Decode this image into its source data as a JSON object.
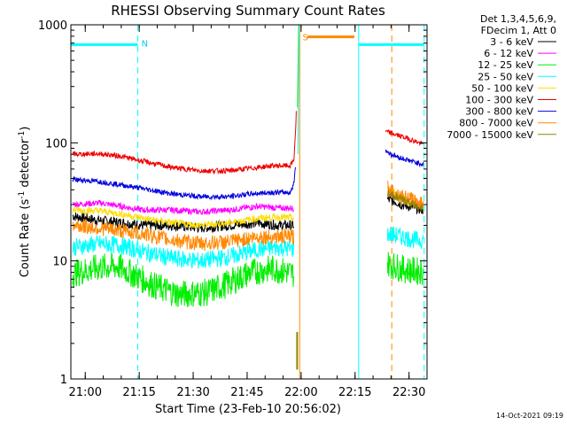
{
  "chart_data": {
    "type": "line",
    "title": "RHESSI Observing Summary Count Rates",
    "xlabel": "Start Time (23-Feb-10 20:56:02)",
    "ylabel_main": "Count Rate (s",
    "ylabel_sup1": "-1",
    "ylabel_mid": " detector",
    "ylabel_sup2": "-1",
    "ylabel_end": ")",
    "y_scale": "log",
    "ylim": [
      1,
      1000
    ],
    "x_unit": "minutes since 20:56:02",
    "xlim": [
      0,
      99
    ],
    "x_ticks": [
      {
        "x": 4,
        "label": "21:00"
      },
      {
        "x": 19,
        "label": "21:15"
      },
      {
        "x": 34,
        "label": "21:30"
      },
      {
        "x": 49,
        "label": "21:45"
      },
      {
        "x": 64,
        "label": "22:00"
      },
      {
        "x": 79,
        "label": "22:15"
      },
      {
        "x": 94,
        "label": "22:30"
      }
    ],
    "y_ticks": [
      {
        "y": 1,
        "label": "1"
      },
      {
        "y": 10,
        "label": "10"
      },
      {
        "y": 100,
        "label": "100"
      },
      {
        "y": 1000,
        "label": "1000"
      }
    ],
    "legend_header": [
      "Det 1,3,4,5,6,9,",
      "FDecim 1, Att 0"
    ],
    "legend_placement": "top-right outside",
    "timestamp": "14-Oct-2021 09:19",
    "annotations": [
      {
        "label": "N",
        "x": 19.6,
        "y": 700,
        "color": "#00c8ff"
      },
      {
        "label": "S",
        "x": 64.4,
        "y": 790,
        "color": "#ff8800"
      }
    ],
    "flags": [
      {
        "name": "night",
        "color": "#00ffff",
        "style": "solid",
        "x": [
          0,
          18.6
        ],
        "y": 680
      },
      {
        "name": "night",
        "color": "#00ffff",
        "style": "solid",
        "x": [
          80,
          98.2
        ],
        "y": 680
      },
      {
        "name": "saa",
        "color": "#ff8800",
        "style": "solid",
        "x": [
          65.7,
          78.8
        ],
        "y": 790
      }
    ],
    "vlines": [
      {
        "x": 0,
        "color": "#00ffff",
        "style": "solid"
      },
      {
        "x": 18.6,
        "color": "#00ffff",
        "style": "dashed"
      },
      {
        "x": 63.6,
        "color": "#ff8800",
        "style": "solid"
      },
      {
        "x": 80,
        "color": "#00ffff",
        "style": "solid"
      },
      {
        "x": 89.2,
        "color": "#ff8800",
        "style": "dashed"
      },
      {
        "x": 98.2,
        "color": "#00ffff",
        "style": "dashed"
      }
    ],
    "series": [
      {
        "name": "3 - 6 keV",
        "color": "#000000",
        "points": [
          [
            0.5,
            24
          ],
          [
            8,
            22
          ],
          [
            15,
            21
          ],
          [
            20,
            20
          ],
          [
            28,
            20
          ],
          [
            36,
            19
          ],
          [
            44,
            20
          ],
          [
            52,
            21
          ],
          [
            58,
            20
          ],
          [
            62,
            20
          ]
        ],
        "points2": [
          [
            88,
            33
          ],
          [
            90,
            32
          ],
          [
            92,
            30
          ],
          [
            96,
            28
          ],
          [
            98,
            27
          ]
        ]
      },
      {
        "name": "6 - 12 keV",
        "color": "#ff00ff",
        "points": [
          [
            0.5,
            30
          ],
          [
            8,
            31
          ],
          [
            14,
            29
          ],
          [
            20,
            27
          ],
          [
            28,
            27
          ],
          [
            36,
            26
          ],
          [
            44,
            27
          ],
          [
            52,
            29
          ],
          [
            58,
            28
          ],
          [
            62,
            28
          ]
        ],
        "points2": [
          [
            88,
            37
          ],
          [
            90,
            36
          ],
          [
            92,
            34
          ],
          [
            96,
            31
          ],
          [
            98,
            30
          ]
        ]
      },
      {
        "name": "12 - 25 keV",
        "color": "#00ee00",
        "points": [
          [
            0.5,
            7.8
          ],
          [
            8,
            8.8
          ],
          [
            13,
            9
          ],
          [
            18,
            7.5
          ],
          [
            24,
            6
          ],
          [
            30,
            5.2
          ],
          [
            38,
            5.4
          ],
          [
            44,
            6.5
          ],
          [
            50,
            8
          ],
          [
            56,
            8.6
          ],
          [
            62,
            7.8
          ]
        ],
        "points2": [
          [
            88,
            9.5
          ],
          [
            92,
            8.6
          ],
          [
            96,
            8.2
          ],
          [
            98,
            8.2
          ]
        ]
      },
      {
        "name": "25 - 50 keV",
        "color": "#00ffff",
        "points": [
          [
            0.5,
            13
          ],
          [
            8,
            14
          ],
          [
            14,
            13.5
          ],
          [
            20,
            12
          ],
          [
            28,
            10.5
          ],
          [
            36,
            10
          ],
          [
            44,
            10.8
          ],
          [
            52,
            12.5
          ],
          [
            58,
            13
          ],
          [
            62,
            12.5
          ]
        ],
        "points2": [
          [
            88,
            17
          ],
          [
            92,
            16
          ],
          [
            96,
            15
          ],
          [
            98,
            15
          ]
        ]
      },
      {
        "name": "50 - 100 keV",
        "color": "#ffdd00",
        "points": [
          [
            0.5,
            27
          ],
          [
            8,
            26.5
          ],
          [
            14,
            25
          ],
          [
            20,
            23
          ],
          [
            28,
            21
          ],
          [
            36,
            20
          ],
          [
            44,
            21
          ],
          [
            52,
            23
          ],
          [
            58,
            23.5
          ],
          [
            62,
            23
          ]
        ],
        "points2": [
          [
            88,
            40
          ],
          [
            90,
            38
          ],
          [
            92,
            34
          ],
          [
            96,
            31
          ],
          [
            98,
            30
          ]
        ]
      },
      {
        "name": "100 - 300 keV",
        "color": "#ee0000",
        "points": [
          [
            0.5,
            80
          ],
          [
            8,
            81
          ],
          [
            14,
            77
          ],
          [
            20,
            70
          ],
          [
            28,
            62
          ],
          [
            36,
            58
          ],
          [
            44,
            58
          ],
          [
            50,
            61
          ],
          [
            56,
            64
          ],
          [
            61,
            64
          ],
          [
            62,
            72
          ],
          [
            62.4,
            120
          ],
          [
            62.7,
            190
          ]
        ],
        "points2": [
          [
            87.5,
            125
          ],
          [
            90,
            118
          ],
          [
            94,
            108
          ],
          [
            98,
            97
          ]
        ]
      },
      {
        "name": "300 - 800 keV",
        "color": "#0000dd",
        "points": [
          [
            0.5,
            49
          ],
          [
            8,
            47
          ],
          [
            14,
            44
          ],
          [
            20,
            41
          ],
          [
            28,
            37
          ],
          [
            36,
            35
          ],
          [
            44,
            35
          ],
          [
            50,
            37
          ],
          [
            56,
            38
          ],
          [
            61,
            38
          ],
          [
            62,
            45
          ],
          [
            62.5,
            70
          ]
        ],
        "points2": [
          [
            87.5,
            86
          ],
          [
            89,
            80
          ],
          [
            92,
            74
          ],
          [
            96,
            68
          ],
          [
            98,
            66
          ]
        ]
      },
      {
        "name": "800 - 7000 keV",
        "color": "#ff8800",
        "points": [
          [
            0.5,
            20
          ],
          [
            8,
            19
          ],
          [
            14,
            18
          ],
          [
            20,
            17
          ],
          [
            28,
            15
          ],
          [
            36,
            14
          ],
          [
            44,
            14.5
          ],
          [
            52,
            16
          ],
          [
            58,
            16
          ],
          [
            62,
            16
          ]
        ],
        "points2": [
          [
            88,
            42
          ],
          [
            90,
            38
          ],
          [
            92,
            35
          ],
          [
            96,
            32
          ],
          [
            98,
            30
          ]
        ]
      },
      {
        "name": "7000 - 15000 keV",
        "color": "#888800",
        "points": [],
        "points2": [
          [
            88,
            38
          ],
          [
            92,
            33
          ],
          [
            98,
            28
          ]
        ]
      }
    ],
    "grid": false
  }
}
